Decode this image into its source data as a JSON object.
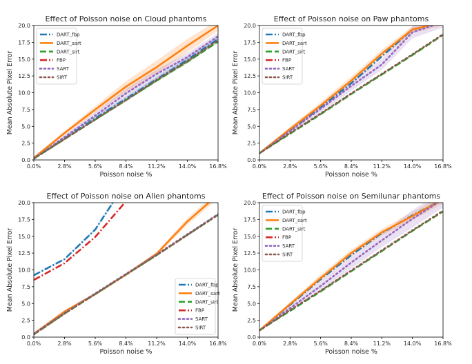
{
  "colors": {
    "DART_fbp": "#1f77b4",
    "DART_sart": "#ff7f0e",
    "DART_sirt": "#2ca02c",
    "FBP": "#d62728",
    "SART": "#9467bd",
    "SIRT": "#8c564b"
  },
  "chart_data": [
    {
      "type": "line",
      "title": "Effect of Poisson noise on Cloud phantoms",
      "xlabel": "Poisson noise %",
      "ylabel": "Mean Absolute Pixel Error",
      "xlim": [
        0,
        16.8
      ],
      "ylim": [
        0,
        20
      ],
      "xticks": [
        "0.0%",
        "2.8%",
        "5.6%",
        "8.4%",
        "11.2%",
        "14.0%",
        "16.8%"
      ],
      "yticks": [
        "0.0",
        "2.5",
        "5.0",
        "7.5",
        "10.0",
        "12.5",
        "15.0",
        "17.5",
        "20.0"
      ],
      "legend_position": "top-left",
      "x": [
        0,
        2.8,
        5.6,
        8.4,
        11.2,
        14.0,
        16.8
      ],
      "series": [
        {
          "name": "DART_fbp",
          "style": "dashdot",
          "values": [
            0.2,
            3.2,
            6.2,
            9.1,
            12.0,
            14.9,
            18.0
          ],
          "band": [
            0.1,
            0.2,
            0.3,
            0.3,
            0.4,
            0.4,
            0.4
          ]
        },
        {
          "name": "DART_sart",
          "style": "solid",
          "values": [
            0.3,
            4.0,
            7.5,
            10.9,
            13.8,
            17.0,
            20.0
          ],
          "band": [
            0.1,
            0.3,
            0.5,
            0.8,
            1.0,
            1.0,
            0.8
          ]
        },
        {
          "name": "DART_sirt",
          "style": "dashed",
          "values": [
            0.2,
            3.1,
            6.0,
            8.9,
            11.8,
            14.6,
            17.6
          ],
          "band": [
            0.1,
            0.1,
            0.1,
            0.2,
            0.2,
            0.2,
            0.2
          ]
        },
        {
          "name": "FBP",
          "style": "dashdot",
          "values": [
            null,
            null,
            null,
            null,
            null,
            null,
            null
          ]
        },
        {
          "name": "SART",
          "style": "dotted",
          "values": [
            0.2,
            3.4,
            6.6,
            9.9,
            12.8,
            15.3,
            18.4
          ],
          "band": [
            0.1,
            0.3,
            0.5,
            0.7,
            0.7,
            0.6,
            0.5
          ]
        },
        {
          "name": "SIRT",
          "style": "dotted",
          "values": [
            0.2,
            3.1,
            6.0,
            8.9,
            11.9,
            14.7,
            17.8
          ],
          "band": [
            0.1,
            0.1,
            0.1,
            0.2,
            0.2,
            0.2,
            0.2
          ]
        }
      ]
    },
    {
      "type": "line",
      "title": "Effect of Poisson noise on Paw phantoms",
      "xlabel": "Poisson noise %",
      "ylabel": "Mean Absolute Pixel Error",
      "xlim": [
        0,
        16.8
      ],
      "ylim": [
        0,
        20
      ],
      "xticks": [
        "0.0%",
        "2.8%",
        "5.6%",
        "8.4%",
        "11.2%",
        "14.0%",
        "16.8%"
      ],
      "yticks": [
        "0.0",
        "2.5",
        "5.0",
        "7.5",
        "10.0",
        "12.5",
        "15.0",
        "17.5",
        "20.0"
      ],
      "legend_position": "top-left",
      "x": [
        0,
        2.8,
        5.6,
        8.4,
        11.2,
        14.0,
        16.8
      ],
      "series": [
        {
          "name": "DART_fbp",
          "style": "dashdot",
          "values": [
            1.0,
            4.4,
            7.8,
            11.4,
            15.4,
            19.4,
            20.5
          ]
        },
        {
          "name": "DART_sart",
          "style": "solid",
          "values": [
            1.0,
            4.6,
            8.1,
            11.8,
            15.8,
            19.4,
            20.5
          ],
          "band": [
            0.1,
            0.3,
            0.5,
            0.6,
            0.6,
            0.5,
            0.5
          ]
        },
        {
          "name": "DART_sirt",
          "style": "dashed",
          "values": [
            1.0,
            3.9,
            6.8,
            9.8,
            12.7,
            15.6,
            18.6
          ],
          "band": [
            0.1,
            0.1,
            0.1,
            0.1,
            0.1,
            0.1,
            0.1
          ]
        },
        {
          "name": "FBP",
          "style": "dashdot",
          "values": [
            null,
            null,
            null,
            null,
            null,
            null,
            null
          ]
        },
        {
          "name": "SART",
          "style": "dotted",
          "values": [
            1.0,
            4.3,
            7.6,
            11.0,
            14.2,
            19.0,
            20.5
          ],
          "band": [
            0.1,
            0.4,
            0.6,
            0.7,
            0.8,
            0.9,
            0.8
          ]
        },
        {
          "name": "SIRT",
          "style": "dotted",
          "values": [
            1.0,
            4.0,
            6.9,
            9.9,
            12.8,
            15.7,
            18.7
          ]
        }
      ]
    },
    {
      "type": "line",
      "title": "Effect of Poisson noise on Alien phantoms",
      "xlabel": "Poisson noise %",
      "ylabel": "Mean Absolute Pixel Error",
      "xlim": [
        0,
        16.8
      ],
      "ylim": [
        0,
        20
      ],
      "xticks": [
        "0.0%",
        "2.8%",
        "5.6%",
        "8.4%",
        "11.2%",
        "14.0%",
        "16.8%"
      ],
      "yticks": [
        "0.0",
        "2.5",
        "5.0",
        "7.5",
        "10.0",
        "12.5",
        "15.0",
        "17.5",
        "20.0"
      ],
      "legend_position": "lower-right",
      "x": [
        0,
        2.8,
        5.6,
        8.4,
        11.2,
        14.0,
        16.8
      ],
      "series": [
        {
          "name": "DART_fbp",
          "style": "dashdot",
          "values": [
            9.2,
            11.6,
            16.0,
            23.0,
            null,
            null,
            null
          ],
          "band": [
            0.1,
            0.1,
            0.2,
            0.4,
            null,
            null,
            null
          ]
        },
        {
          "name": "DART_sart",
          "style": "solid",
          "values": [
            0.5,
            3.8,
            6.4,
            9.3,
            12.4,
            17.2,
            21.2
          ],
          "band": [
            0.1,
            0.2,
            0.2,
            0.2,
            0.3,
            0.5,
            0.6
          ]
        },
        {
          "name": "DART_sirt",
          "style": "dashed",
          "values": [
            0.4,
            3.5,
            6.4,
            9.3,
            12.2,
            15.2,
            18.2
          ]
        },
        {
          "name": "FBP",
          "style": "dashdot",
          "values": [
            8.5,
            11.0,
            14.9,
            20.2,
            26.0,
            null,
            null
          ]
        },
        {
          "name": "SART",
          "style": "dotted",
          "values": [
            0.5,
            3.6,
            6.5,
            9.4,
            12.3,
            15.3,
            18.3
          ]
        },
        {
          "name": "SIRT",
          "style": "dotted",
          "values": [
            0.4,
            3.5,
            6.4,
            9.3,
            12.2,
            15.2,
            18.2
          ]
        }
      ]
    },
    {
      "type": "line",
      "title": "Effect of Poisson noise on Semilunar phantoms",
      "xlabel": "Poisson noise %",
      "ylabel": "Mean Absolute Pixel Error",
      "xlim": [
        0,
        16.8
      ],
      "ylim": [
        0,
        20
      ],
      "xticks": [
        "0.0%",
        "2.8%",
        "5.6%",
        "8.4%",
        "11.2%",
        "14.0%",
        "16.8%"
      ],
      "yticks": [
        "0.0",
        "2.5",
        "5.0",
        "7.5",
        "10.0",
        "12.5",
        "15.0",
        "17.5",
        "20.0"
      ],
      "legend_position": "top-left",
      "x": [
        0,
        2.8,
        5.6,
        8.4,
        11.2,
        14.0,
        16.8
      ],
      "series": [
        {
          "name": "DART_fbp",
          "style": "dashdot",
          "values": [
            1.0,
            4.8,
            8.6,
            12.2,
            15.5,
            18.1,
            20.5
          ]
        },
        {
          "name": "DART_sart",
          "style": "solid",
          "values": [
            1.0,
            4.9,
            8.8,
            12.5,
            15.6,
            18.0,
            20.5
          ],
          "band": [
            0.1,
            0.3,
            0.5,
            0.5,
            0.5,
            0.6,
            0.6
          ]
        },
        {
          "name": "DART_sirt",
          "style": "dashed",
          "values": [
            1.0,
            3.9,
            6.8,
            9.8,
            12.8,
            15.8,
            18.7
          ]
        },
        {
          "name": "FBP",
          "style": "dashdot",
          "values": [
            null,
            null,
            null,
            null,
            null,
            null,
            null
          ]
        },
        {
          "name": "SART",
          "style": "dotted",
          "values": [
            1.0,
            4.3,
            7.6,
            11.1,
            14.4,
            17.6,
            20.5
          ],
          "band": [
            0.1,
            0.4,
            0.7,
            0.9,
            1.0,
            1.3,
            1.2
          ]
        },
        {
          "name": "SIRT",
          "style": "dotted",
          "values": [
            1.0,
            4.0,
            6.9,
            9.9,
            12.9,
            15.9,
            18.8
          ]
        }
      ]
    }
  ]
}
